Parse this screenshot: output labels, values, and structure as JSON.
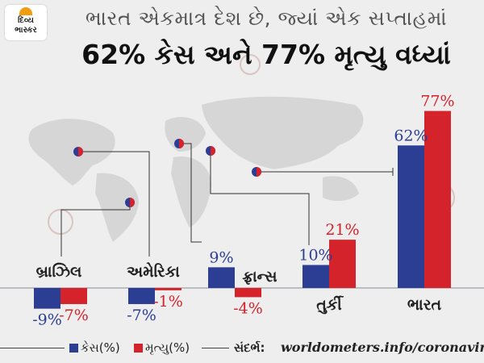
{
  "logo": {
    "text": "દિવ્ય ભાસ્કર"
  },
  "header": {
    "title_line1": "ભારત એકમાત્ર દેશ છે, જ્યાં એક સપ્તાહમાં",
    "title_line2": "62% કેસ અને 77% મૃત્યુ વધ્યાં"
  },
  "colors": {
    "cases": "#2c3e94",
    "deaths": "#d4232b",
    "background": "#eeeeee",
    "map": "#d7d7d7"
  },
  "chart_data": {
    "type": "bar",
    "categories": [
      "બ્રાઝિલ",
      "અમેરિકા",
      "ફ્રાન્સ",
      "તુર્કી",
      "ભારત"
    ],
    "series": [
      {
        "name": "કેસ(%)",
        "values": [
          -9,
          -7,
          9,
          10,
          62
        ],
        "color": "#2c3e94"
      },
      {
        "name": "મૃત્યુ(%)",
        "values": [
          -7,
          -1,
          -4,
          21,
          77
        ],
        "color": "#d4232b"
      }
    ],
    "value_labels": {
      "cases": [
        "-9%",
        "-7%",
        "9%",
        "10%",
        "62%"
      ],
      "deaths": [
        "-7%",
        "-1%",
        "-4%",
        "21%",
        "77%"
      ]
    },
    "title": "",
    "xlabel": "",
    "ylabel": "",
    "legend_position": "bottom-left",
    "grid": false
  },
  "footer": {
    "legend_cases": "કેસ(%)",
    "legend_deaths": "મૃત્યુ(%)",
    "source_label": "સંદર્ભ:",
    "source_url": "worldometers.info/coronavirus"
  }
}
